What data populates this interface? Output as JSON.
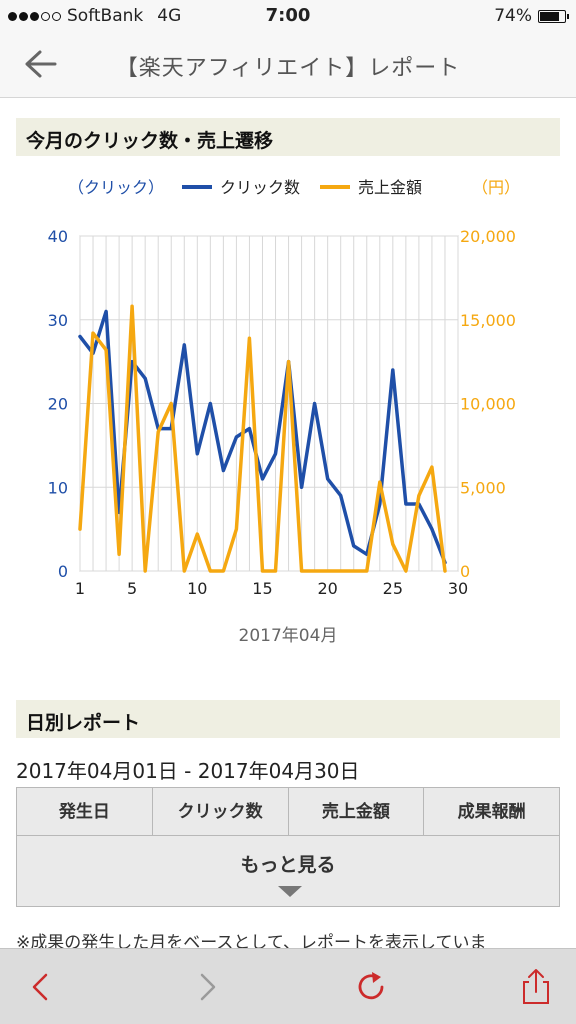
{
  "status_bar": {
    "carrier": "SoftBank",
    "network": "4G",
    "time": "7:00",
    "battery": "74%"
  },
  "nav": {
    "title": "【楽天アフィリエイト】レポート"
  },
  "chart_section": {
    "title": "今月のクリック数・売上遷移"
  },
  "chart_data": {
    "type": "line",
    "legend": {
      "left_axis_unit": "（クリック）",
      "right_axis_unit": "（円）",
      "placement": "top"
    },
    "xlabel": "2017年04月",
    "x": [
      1,
      2,
      3,
      4,
      5,
      6,
      7,
      8,
      9,
      10,
      11,
      12,
      13,
      14,
      15,
      16,
      17,
      18,
      19,
      20,
      21,
      22,
      23,
      24,
      25,
      26,
      27,
      28,
      29
    ],
    "x_ticks": [
      "1",
      "5",
      "10",
      "15",
      "20",
      "25",
      "30"
    ],
    "xlim": [
      1,
      30
    ],
    "y_left_ticks": [
      "0",
      "10",
      "20",
      "30",
      "40"
    ],
    "y_left_lim": [
      0,
      40
    ],
    "y_right_ticks": [
      "0",
      "5,000",
      "10,000",
      "15,000",
      "20,000"
    ],
    "y_right_lim": [
      0,
      20000
    ],
    "grid": true,
    "series": [
      {
        "name": "クリック数",
        "axis": "left",
        "color": "#1f4fa8",
        "values": [
          28,
          26,
          31,
          7,
          25,
          23,
          17,
          17,
          27,
          14,
          20,
          12,
          16,
          17,
          11,
          14,
          25,
          10,
          20,
          11,
          9,
          3,
          2,
          8,
          24,
          8,
          8,
          5,
          1
        ]
      },
      {
        "name": "売上金額",
        "axis": "right",
        "color": "#f5a811",
        "values": [
          2500,
          14200,
          13200,
          1000,
          15800,
          0,
          8300,
          10000,
          0,
          2200,
          0,
          0,
          2500,
          13900,
          0,
          0,
          12500,
          0,
          0,
          0,
          0,
          0,
          0,
          5300,
          1600,
          0,
          4500,
          6200,
          0
        ]
      }
    ]
  },
  "daily_section": {
    "title": "日別レポート"
  },
  "date_range": "2017年04月01日 - 2017年04月30日",
  "table": {
    "headers": [
      "発生日",
      "クリック数",
      "売上金額",
      "成果報酬"
    ],
    "more_label": "もっと見る"
  },
  "note": "※成果の発生した月をベースとして、レポートを表示していま"
}
